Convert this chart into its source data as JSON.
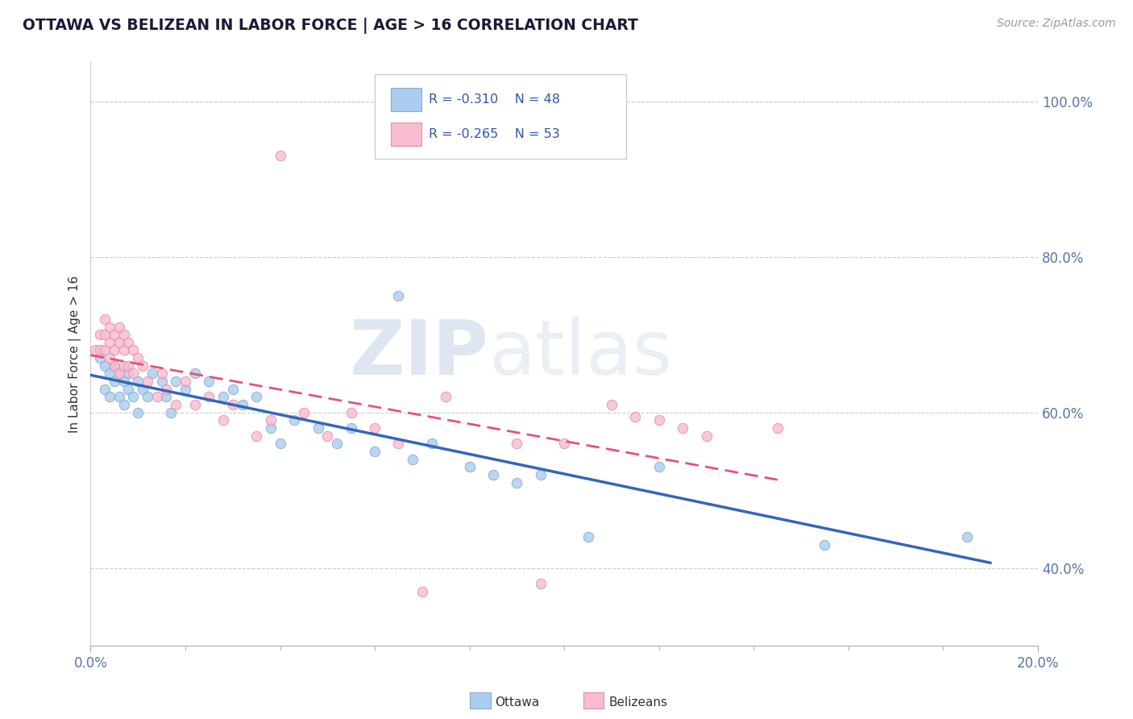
{
  "title": "OTTAWA VS BELIZEAN IN LABOR FORCE | AGE > 16 CORRELATION CHART",
  "source_text": "Source: ZipAtlas.com",
  "ylabel": "In Labor Force | Age > 16",
  "xlim": [
    0.0,
    0.2
  ],
  "ylim": [
    0.3,
    1.05
  ],
  "y_ticks": [
    0.4,
    0.6,
    0.8,
    1.0
  ],
  "y_tick_labels": [
    "40.0%",
    "60.0%",
    "80.0%",
    "100.0%"
  ],
  "watermark_zip": "ZIP",
  "watermark_atlas": "atlas",
  "ottawa_color": "#aaccee",
  "ottawa_edge": "#88aacc",
  "belizean_color": "#f8bbd0",
  "belizean_edge": "#e090a8",
  "ottawa_line_color": "#3366bb",
  "belizean_line_color": "#e8507a",
  "ottawa_scatter": [
    [
      0.002,
      0.67
    ],
    [
      0.003,
      0.66
    ],
    [
      0.003,
      0.63
    ],
    [
      0.004,
      0.65
    ],
    [
      0.004,
      0.62
    ],
    [
      0.005,
      0.66
    ],
    [
      0.005,
      0.64
    ],
    [
      0.006,
      0.65
    ],
    [
      0.006,
      0.62
    ],
    [
      0.007,
      0.64
    ],
    [
      0.007,
      0.61
    ],
    [
      0.008,
      0.65
    ],
    [
      0.008,
      0.63
    ],
    [
      0.009,
      0.62
    ],
    [
      0.01,
      0.64
    ],
    [
      0.01,
      0.6
    ],
    [
      0.011,
      0.63
    ],
    [
      0.012,
      0.62
    ],
    [
      0.013,
      0.65
    ],
    [
      0.015,
      0.64
    ],
    [
      0.016,
      0.62
    ],
    [
      0.017,
      0.6
    ],
    [
      0.018,
      0.64
    ],
    [
      0.02,
      0.63
    ],
    [
      0.022,
      0.65
    ],
    [
      0.025,
      0.64
    ],
    [
      0.028,
      0.62
    ],
    [
      0.03,
      0.63
    ],
    [
      0.032,
      0.61
    ],
    [
      0.035,
      0.62
    ],
    [
      0.038,
      0.58
    ],
    [
      0.04,
      0.56
    ],
    [
      0.043,
      0.59
    ],
    [
      0.048,
      0.58
    ],
    [
      0.052,
      0.56
    ],
    [
      0.055,
      0.58
    ],
    [
      0.06,
      0.55
    ],
    [
      0.065,
      0.75
    ],
    [
      0.068,
      0.54
    ],
    [
      0.072,
      0.56
    ],
    [
      0.08,
      0.53
    ],
    [
      0.085,
      0.52
    ],
    [
      0.09,
      0.51
    ],
    [
      0.095,
      0.52
    ],
    [
      0.105,
      0.44
    ],
    [
      0.12,
      0.53
    ],
    [
      0.155,
      0.43
    ],
    [
      0.185,
      0.44
    ]
  ],
  "belizean_scatter": [
    [
      0.001,
      0.68
    ],
    [
      0.002,
      0.7
    ],
    [
      0.002,
      0.68
    ],
    [
      0.003,
      0.72
    ],
    [
      0.003,
      0.7
    ],
    [
      0.003,
      0.68
    ],
    [
      0.004,
      0.71
    ],
    [
      0.004,
      0.69
    ],
    [
      0.004,
      0.67
    ],
    [
      0.005,
      0.7
    ],
    [
      0.005,
      0.68
    ],
    [
      0.005,
      0.66
    ],
    [
      0.006,
      0.71
    ],
    [
      0.006,
      0.69
    ],
    [
      0.006,
      0.65
    ],
    [
      0.007,
      0.7
    ],
    [
      0.007,
      0.68
    ],
    [
      0.007,
      0.66
    ],
    [
      0.008,
      0.69
    ],
    [
      0.008,
      0.66
    ],
    [
      0.009,
      0.68
    ],
    [
      0.009,
      0.65
    ],
    [
      0.01,
      0.67
    ],
    [
      0.011,
      0.66
    ],
    [
      0.012,
      0.64
    ],
    [
      0.014,
      0.62
    ],
    [
      0.015,
      0.65
    ],
    [
      0.016,
      0.63
    ],
    [
      0.018,
      0.61
    ],
    [
      0.02,
      0.64
    ],
    [
      0.022,
      0.61
    ],
    [
      0.025,
      0.62
    ],
    [
      0.028,
      0.59
    ],
    [
      0.03,
      0.61
    ],
    [
      0.035,
      0.57
    ],
    [
      0.038,
      0.59
    ],
    [
      0.04,
      0.93
    ],
    [
      0.045,
      0.6
    ],
    [
      0.05,
      0.57
    ],
    [
      0.055,
      0.6
    ],
    [
      0.06,
      0.58
    ],
    [
      0.065,
      0.56
    ],
    [
      0.07,
      0.37
    ],
    [
      0.075,
      0.62
    ],
    [
      0.09,
      0.56
    ],
    [
      0.095,
      0.38
    ],
    [
      0.1,
      0.56
    ],
    [
      0.11,
      0.61
    ],
    [
      0.115,
      0.595
    ],
    [
      0.12,
      0.59
    ],
    [
      0.125,
      0.58
    ],
    [
      0.13,
      0.57
    ],
    [
      0.145,
      0.58
    ]
  ]
}
